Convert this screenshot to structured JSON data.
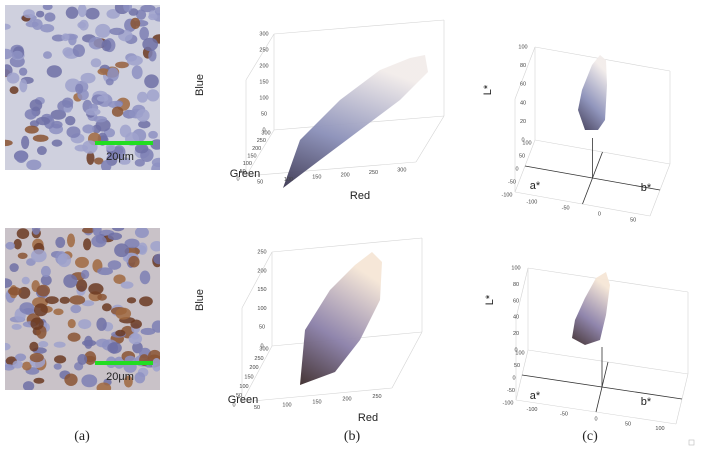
{
  "figure": {
    "rows": [
      {
        "image": {
          "scale_bar": "20μm"
        },
        "rgb_plot": {
          "z_label": "Blue",
          "y_label": "Green",
          "x_label": "Red",
          "z_ticks": [
            0,
            50,
            100,
            150,
            200,
            250,
            300
          ],
          "y_ticks": [
            300,
            250,
            200,
            150,
            100,
            50,
            0
          ],
          "x_ticks": [
            50,
            100,
            150,
            200,
            250,
            300
          ]
        },
        "lab_plot": {
          "z_label": "L*",
          "y_label": "a*",
          "x_label": "b*",
          "z_ticks": [
            0,
            20,
            40,
            60,
            80,
            100
          ],
          "y_ticks": [
            100,
            50,
            0,
            -50,
            -100
          ],
          "x_ticks": [
            -100,
            -50,
            0,
            50
          ]
        }
      },
      {
        "image": {
          "scale_bar": "20μm"
        },
        "rgb_plot": {
          "z_label": "Blue",
          "y_label": "Green",
          "x_label": "Red",
          "z_ticks": [
            0,
            50,
            100,
            150,
            200,
            250
          ],
          "y_ticks": [
            300,
            250,
            200,
            150,
            100,
            50,
            0
          ],
          "x_ticks": [
            50,
            100,
            150,
            200,
            250
          ]
        },
        "lab_plot": {
          "z_label": "L*",
          "y_label": "a*",
          "x_label": "b*",
          "z_ticks": [
            0,
            20,
            40,
            60,
            80,
            100
          ],
          "y_ticks": [
            100,
            50,
            0,
            -50,
            -100
          ],
          "x_ticks": [
            -100,
            -50,
            0,
            50,
            100
          ]
        }
      }
    ],
    "captions": [
      "(a)",
      "(b)",
      "(c)"
    ]
  }
}
